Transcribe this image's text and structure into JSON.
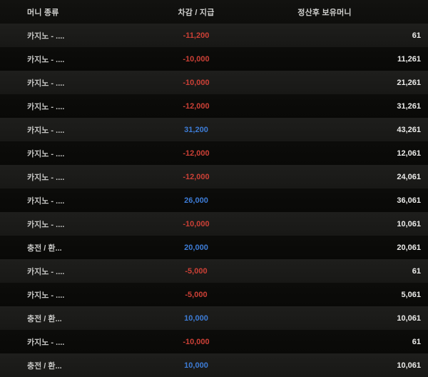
{
  "table": {
    "columns": [
      {
        "key": "type",
        "label": "머니 종류"
      },
      {
        "key": "amount",
        "label": "차감 / 지급"
      },
      {
        "key": "balance",
        "label": "정산후 보유머니"
      }
    ],
    "rows": [
      {
        "type": "카지노 - ....",
        "amount": "-11,200",
        "amount_kind": "negative",
        "balance": "61"
      },
      {
        "type": "카지노 - ....",
        "amount": "-10,000",
        "amount_kind": "negative",
        "balance": "11,261"
      },
      {
        "type": "카지노 - ....",
        "amount": "-10,000",
        "amount_kind": "negative",
        "balance": "21,261"
      },
      {
        "type": "카지노 - ....",
        "amount": "-12,000",
        "amount_kind": "negative",
        "balance": "31,261"
      },
      {
        "type": "카지노 - ....",
        "amount": "31,200",
        "amount_kind": "positive",
        "balance": "43,261"
      },
      {
        "type": "카지노 - ....",
        "amount": "-12,000",
        "amount_kind": "negative",
        "balance": "12,061"
      },
      {
        "type": "카지노 - ....",
        "amount": "-12,000",
        "amount_kind": "negative",
        "balance": "24,061"
      },
      {
        "type": "카지노 - ....",
        "amount": "26,000",
        "amount_kind": "positive",
        "balance": "36,061"
      },
      {
        "type": "카지노 - ....",
        "amount": "-10,000",
        "amount_kind": "negative",
        "balance": "10,061"
      },
      {
        "type": "충전 / 환...",
        "amount": "20,000",
        "amount_kind": "positive",
        "balance": "20,061"
      },
      {
        "type": "카지노 - ....",
        "amount": "-5,000",
        "amount_kind": "negative",
        "balance": "61"
      },
      {
        "type": "카지노 - ....",
        "amount": "-5,000",
        "amount_kind": "negative",
        "balance": "5,061"
      },
      {
        "type": "충전 / 환...",
        "amount": "10,000",
        "amount_kind": "positive",
        "balance": "10,061"
      },
      {
        "type": "카지노 - ....",
        "amount": "-10,000",
        "amount_kind": "negative",
        "balance": "61"
      },
      {
        "type": "충전 / 환...",
        "amount": "10,000",
        "amount_kind": "positive",
        "balance": "10,061"
      }
    ]
  },
  "colors": {
    "negative": "#cc4036",
    "positive": "#3d7cd6",
    "balance_text": "#ececea",
    "row_odd_bg": "#1c1c1a",
    "row_even_bg": "#0b0b09",
    "header_text": "#cfcfcd"
  }
}
